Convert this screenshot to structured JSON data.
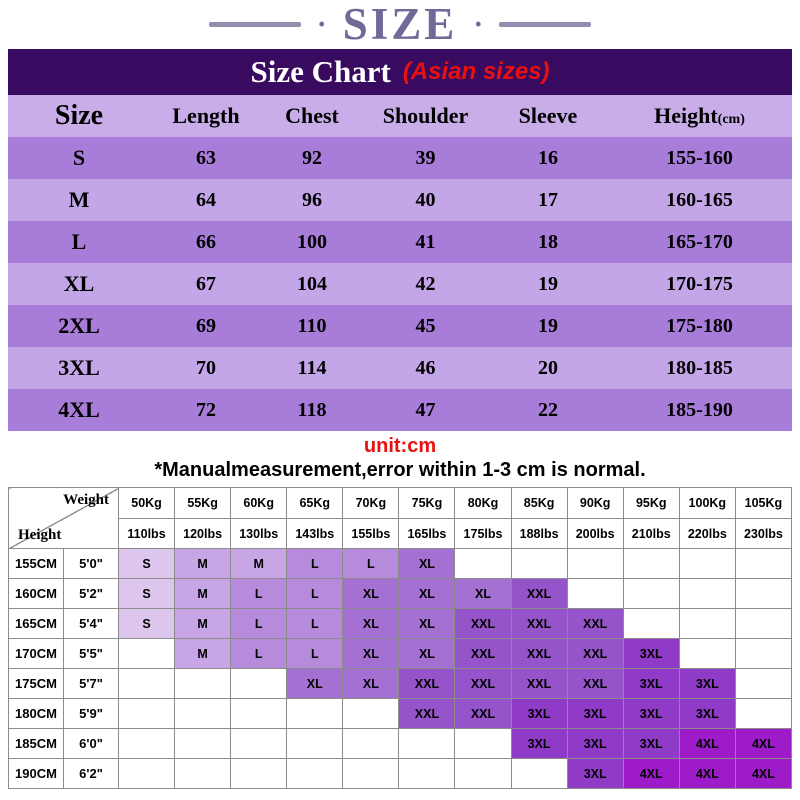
{
  "header": {
    "decor_dot": "·",
    "title": "SIZE",
    "banner_title": "Size Chart",
    "banner_subtitle": "(Asian sizes)"
  },
  "size_table": {
    "columns": [
      "Size",
      "Length",
      "Chest",
      "Shoulder",
      "Sleeve",
      "Height"
    ],
    "height_unit_suffix": "(cm)",
    "rows": [
      [
        "S",
        "63",
        "92",
        "39",
        "16",
        "155-160"
      ],
      [
        "M",
        "64",
        "96",
        "40",
        "17",
        "160-165"
      ],
      [
        "L",
        "66",
        "100",
        "41",
        "18",
        "165-170"
      ],
      [
        "XL",
        "67",
        "104",
        "42",
        "19",
        "170-175"
      ],
      [
        "2XL",
        "69",
        "110",
        "45",
        "19",
        "175-180"
      ],
      [
        "3XL",
        "70",
        "114",
        "46",
        "20",
        "180-185"
      ],
      [
        "4XL",
        "72",
        "118",
        "47",
        "22",
        "185-190"
      ]
    ]
  },
  "notes": {
    "unit": "unit:cm",
    "measurement": "*Manualmeasurement,error within 1-3 cm is normal."
  },
  "matrix": {
    "corner_top": "Weight",
    "corner_bottom": "Height",
    "weight_kg": [
      "50Kg",
      "55Kg",
      "60Kg",
      "65Kg",
      "70Kg",
      "75Kg",
      "80Kg",
      "85Kg",
      "90Kg",
      "95Kg",
      "100Kg",
      "105Kg"
    ],
    "weight_lbs": [
      "110lbs",
      "120lbs",
      "130lbs",
      "143lbs",
      "155lbs",
      "165lbs",
      "175lbs",
      "188lbs",
      "200lbs",
      "210lbs",
      "220lbs",
      "230lbs"
    ],
    "rows": [
      {
        "cm": "155CM",
        "ft": "5'0\"",
        "cells": [
          "S",
          "M",
          "M",
          "L",
          "L",
          "XL",
          "",
          "",
          "",
          "",
          "",
          ""
        ]
      },
      {
        "cm": "160CM",
        "ft": "5'2\"",
        "cells": [
          "S",
          "M",
          "L",
          "L",
          "XL",
          "XL",
          "XL",
          "XXL",
          "",
          "",
          "",
          ""
        ]
      },
      {
        "cm": "165CM",
        "ft": "5'4\"",
        "cells": [
          "S",
          "M",
          "L",
          "L",
          "XL",
          "XL",
          "XXL",
          "XXL",
          "XXL",
          "",
          "",
          ""
        ]
      },
      {
        "cm": "170CM",
        "ft": "5'5\"",
        "cells": [
          "",
          "M",
          "L",
          "L",
          "XL",
          "XL",
          "XXL",
          "XXL",
          "XXL",
          "3XL",
          "",
          ""
        ]
      },
      {
        "cm": "175CM",
        "ft": "5'7\"",
        "cells": [
          "",
          "",
          "",
          "XL",
          "XL",
          "XXL",
          "XXL",
          "XXL",
          "XXL",
          "3XL",
          "3XL",
          ""
        ]
      },
      {
        "cm": "180CM",
        "ft": "5'9\"",
        "cells": [
          "",
          "",
          "",
          "",
          "",
          "XXL",
          "XXL",
          "3XL",
          "3XL",
          "3XL",
          "3XL",
          ""
        ]
      },
      {
        "cm": "185CM",
        "ft": "6'0\"",
        "cells": [
          "",
          "",
          "",
          "",
          "",
          "",
          "",
          "3XL",
          "3XL",
          "3XL",
          "4XL",
          "4XL"
        ]
      },
      {
        "cm": "190CM",
        "ft": "6'2\"",
        "cells": [
          "",
          "",
          "",
          "",
          "",
          "",
          "",
          "",
          "3XL",
          "4XL",
          "4XL",
          "4XL"
        ]
      }
    ],
    "size_colors": {
      "S": "#dcc6ee",
      "M": "#c8a6e6",
      "L": "#b68bdc",
      "XL": "#a471d2",
      "XXL": "#9554c9",
      "3XL": "#8f3bc8",
      "4XL": "#9e1bca"
    }
  },
  "colors": {
    "banner_bg": "#380a60",
    "accent_red": "#ea1010",
    "title": "#6f6b99",
    "title_bar": "#938daf",
    "table_header_bg": "#c9ade9",
    "row_dark": "#a87cd9",
    "row_light": "#c3a6e8",
    "matrix_border": "#8c8c8c"
  }
}
